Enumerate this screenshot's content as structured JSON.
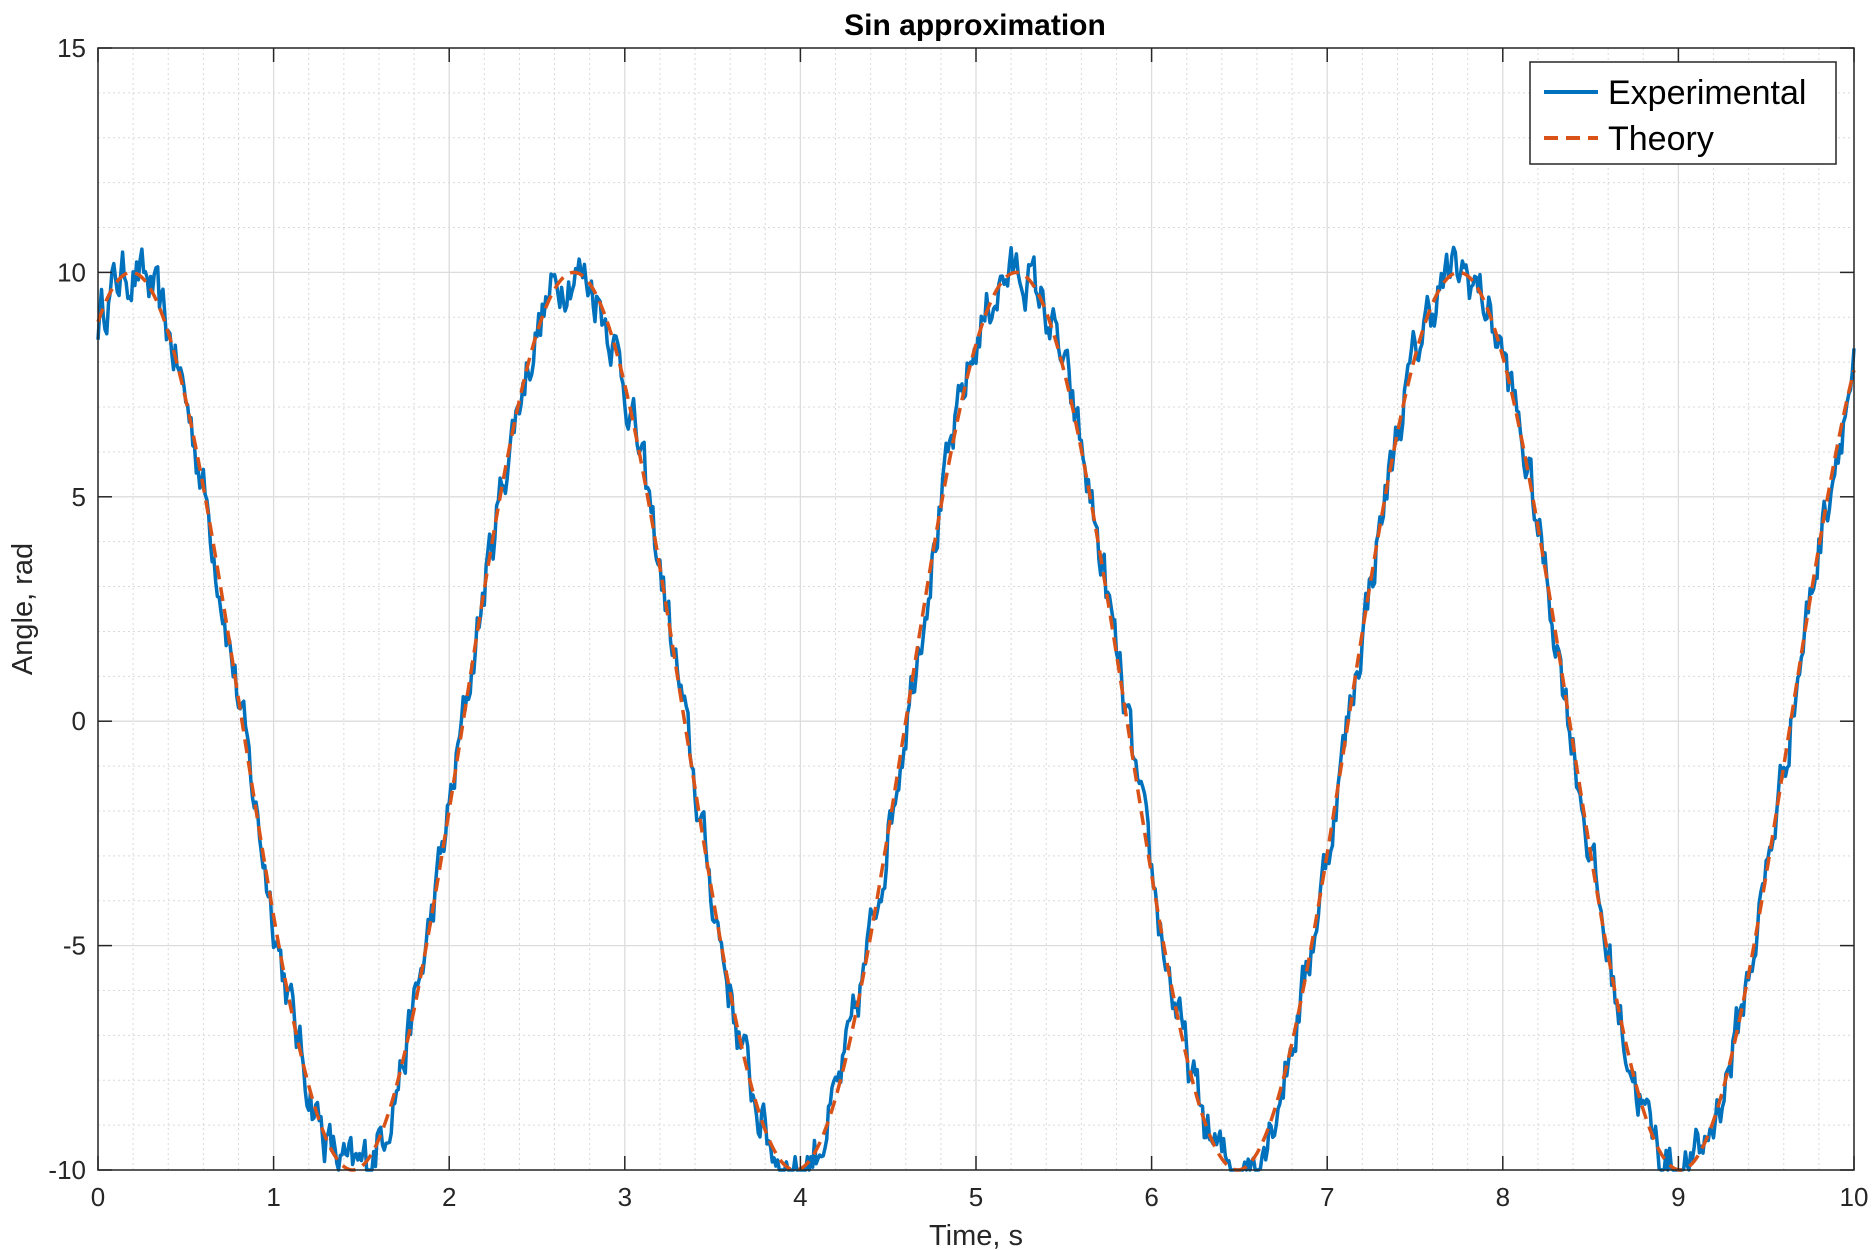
{
  "chart_data": {
    "type": "line",
    "title": "Sin approximation",
    "xlabel": "Time, s",
    "ylabel": "Angle, rad",
    "xlim": [
      0,
      10
    ],
    "ylim": [
      -10,
      15
    ],
    "x_ticks": [
      "0",
      "1",
      "2",
      "3",
      "4",
      "5",
      "6",
      "7",
      "8",
      "9",
      "10"
    ],
    "y_ticks": [
      "-10",
      "-5",
      "0",
      "5",
      "10",
      "15"
    ],
    "grid": true,
    "minor_grid": true,
    "legend_position": "top-right",
    "sine_model": {
      "amplitude": 10,
      "period_s": 2.52,
      "phase_shift_s": 0.19
    },
    "noise_amplitude": 0.45,
    "series": [
      {
        "name": "Experimental",
        "color": "#0072BD",
        "style": "solid"
      },
      {
        "name": "Theory",
        "color": "#D95319",
        "style": "dashed"
      }
    ]
  }
}
